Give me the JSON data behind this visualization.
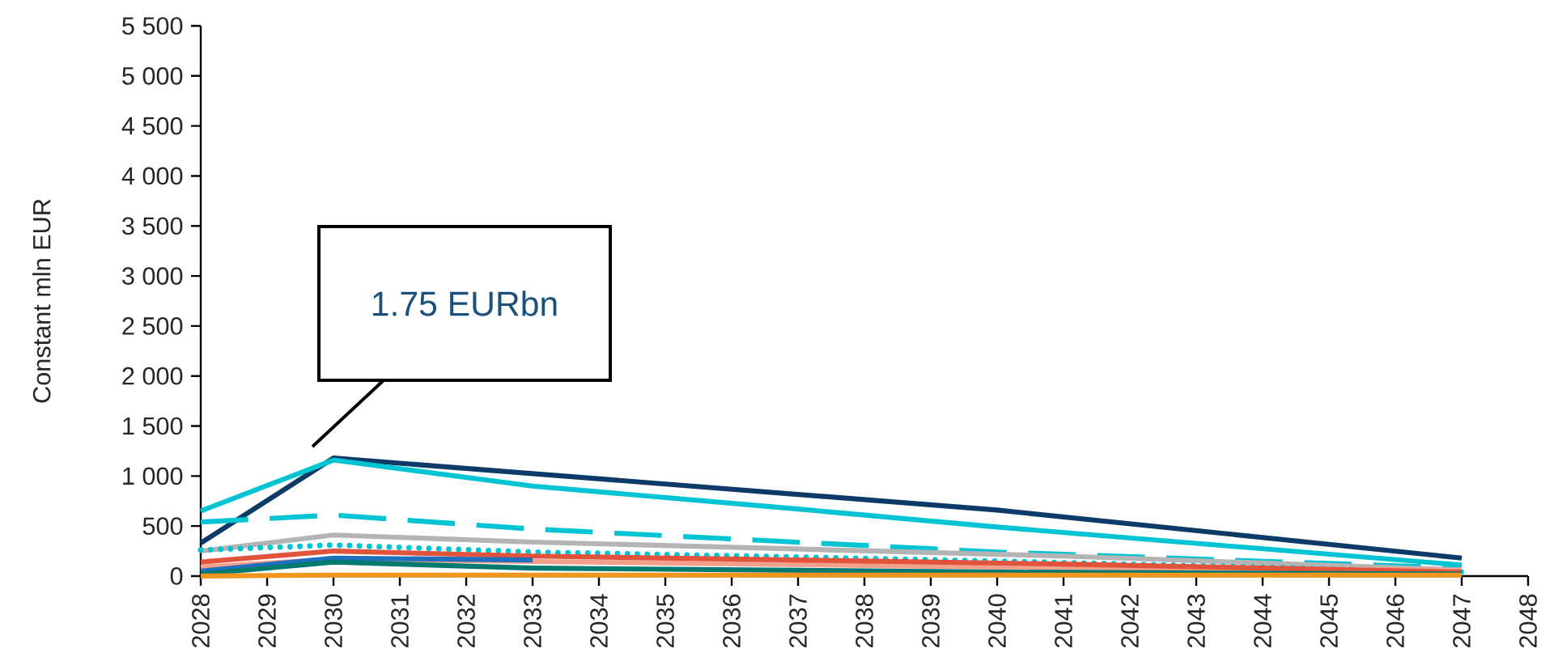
{
  "chart_data": {
    "type": "line",
    "ylabel": "Constant mln EUR",
    "annotations": [
      "1.75 EURbn"
    ],
    "xlim": [
      2028,
      2048
    ],
    "xticks": [
      2028,
      2029,
      2030,
      2031,
      2032,
      2033,
      2034,
      2035,
      2036,
      2037,
      2038,
      2039,
      2040,
      2041,
      2042,
      2043,
      2044,
      2045,
      2046,
      2047,
      2048
    ],
    "ylim": [
      0,
      5500
    ],
    "yticks": [
      0,
      500,
      {
        "value": 1000,
        "label": "1 000"
      },
      {
        "value": 1500,
        "label": "1 500"
      },
      {
        "value": 2000,
        "label": "2 000"
      },
      {
        "value": 2500,
        "label": "2 500"
      },
      {
        "value": 3000,
        "label": "3 000"
      },
      {
        "value": 3500,
        "label": "3 500"
      },
      {
        "value": 4000,
        "label": "4 000"
      },
      {
        "value": 4500,
        "label": "4 500"
      },
      {
        "value": 5000,
        "label": "5 000"
      },
      {
        "value": 5500,
        "label": "5 500"
      }
    ],
    "series": [
      {
        "color": "#0d3a66",
        "line_style": "solid",
        "x": [
          2028,
          2030,
          2040,
          2047
        ],
        "values": [
          330,
          1180,
          660,
          180
        ]
      },
      {
        "color": "#00c4d3",
        "line_style": "solid",
        "x": [
          2028,
          2030,
          2033,
          2037,
          2040,
          2047
        ],
        "values": [
          650,
          1160,
          900,
          670,
          490,
          110
        ]
      },
      {
        "color": "#00c4d3",
        "line_style": "dashed",
        "x": [
          2028,
          2030,
          2033,
          2040,
          2047
        ],
        "values": [
          540,
          610,
          470,
          240,
          80
        ]
      },
      {
        "color": "#b4b4b4",
        "line_style": "solid",
        "x": [
          2028,
          2030,
          2033,
          2041,
          2047
        ],
        "values": [
          250,
          410,
          340,
          200,
          60
        ]
      },
      {
        "color": "#00c4d3",
        "line_style": "dotted",
        "x": [
          2028,
          2030,
          2033,
          2037,
          2040,
          2047
        ],
        "values": [
          260,
          310,
          240,
          190,
          150,
          40
        ]
      },
      {
        "color": "#f2a08c",
        "line_style": "solid",
        "x": [
          2028,
          2030,
          2040,
          2047
        ],
        "values": [
          90,
          170,
          90,
          60
        ]
      },
      {
        "color": "#e2533c",
        "line_style": "solid",
        "x": [
          2028,
          2030,
          2033,
          2041,
          2047
        ],
        "values": [
          140,
          250,
          200,
          120,
          40
        ]
      },
      {
        "color": "#1f6fbf",
        "line_style": "solid",
        "x": [
          2028,
          2030,
          2033
        ],
        "values": [
          50,
          180,
          160
        ]
      },
      {
        "color": "#00796f",
        "line_style": "solid",
        "x": [
          2028,
          2030,
          2033,
          2040,
          2047
        ],
        "values": [
          20,
          140,
          80,
          40,
          20
        ]
      },
      {
        "color": "#f0961e",
        "line_style": "solid",
        "x": [
          2028,
          2030,
          2047
        ],
        "values": [
          0,
          10,
          10
        ]
      }
    ]
  }
}
